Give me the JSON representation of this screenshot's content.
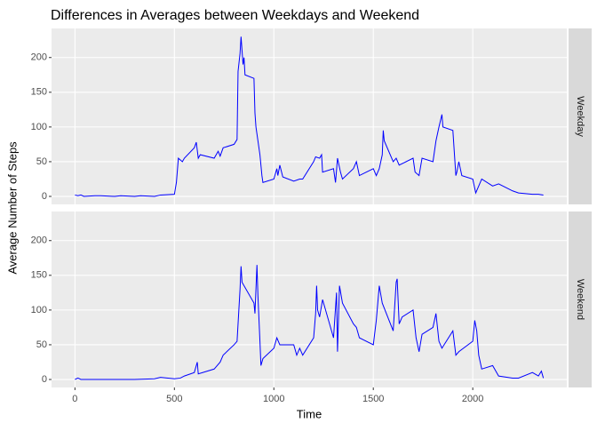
{
  "chart_data": {
    "type": "line",
    "title": "Differences in Averages between Weekdays and Weekend",
    "xlabel": "Time",
    "ylabel": "Average Number of Steps",
    "xlim": [
      -117.75,
      2472.75
    ],
    "xticks": [
      0,
      500,
      1000,
      1500,
      2000
    ],
    "ylim": [
      -11.5,
      241.9
    ],
    "yticks": [
      0,
      50,
      100,
      150,
      200
    ],
    "grid": true,
    "series": [
      {
        "name": "Weekday",
        "color": "#0000ff",
        "x": [
          0,
          15,
          30,
          45,
          100,
          130,
          200,
          230,
          300,
          330,
          400,
          430,
          500,
          510,
          520,
          540,
          550,
          600,
          610,
          620,
          630,
          700,
          720,
          730,
          745,
          800,
          815,
          820,
          830,
          835,
          840,
          845,
          850,
          855,
          900,
          905,
          910,
          915,
          930,
          940,
          945,
          1000,
          1015,
          1020,
          1030,
          1045,
          1100,
          1130,
          1145,
          1200,
          1210,
          1230,
          1240,
          1245,
          1300,
          1310,
          1320,
          1335,
          1345,
          1400,
          1415,
          1430,
          1500,
          1515,
          1530,
          1545,
          1550,
          1555,
          1600,
          1615,
          1630,
          1700,
          1710,
          1730,
          1745,
          1800,
          1815,
          1830,
          1845,
          1850,
          1900,
          1915,
          1920,
          1930,
          1945,
          2000,
          2015,
          2030,
          2045,
          2100,
          2130,
          2200,
          2230,
          2300,
          2330,
          2355
        ],
        "values": [
          2,
          1,
          2,
          0,
          1,
          1,
          0,
          1,
          0,
          1,
          0,
          2,
          3,
          20,
          55,
          50,
          55,
          70,
          78,
          55,
          60,
          55,
          65,
          58,
          70,
          75,
          82,
          180,
          206,
          230,
          210,
          190,
          200,
          175,
          170,
          120,
          100,
          90,
          60,
          30,
          20,
          25,
          40,
          30,
          45,
          28,
          22,
          25,
          25,
          50,
          57,
          55,
          60,
          35,
          40,
          20,
          55,
          35,
          25,
          40,
          50,
          30,
          40,
          30,
          40,
          60,
          95,
          80,
          50,
          55,
          45,
          55,
          35,
          30,
          55,
          50,
          80,
          100,
          118,
          100,
          95,
          30,
          35,
          50,
          30,
          25,
          5,
          15,
          25,
          15,
          18,
          8,
          5,
          3,
          3,
          2
        ]
      },
      {
        "name": "Weekend",
        "color": "#0000ff",
        "x": [
          0,
          15,
          30,
          100,
          200,
          300,
          400,
          430,
          500,
          530,
          550,
          600,
          615,
          620,
          700,
          730,
          745,
          800,
          815,
          830,
          835,
          840,
          900,
          905,
          915,
          920,
          930,
          935,
          945,
          1000,
          1015,
          1030,
          1100,
          1115,
          1130,
          1145,
          1200,
          1210,
          1215,
          1220,
          1230,
          1245,
          1300,
          1315,
          1320,
          1330,
          1345,
          1400,
          1415,
          1430,
          1500,
          1515,
          1530,
          1545,
          1600,
          1615,
          1620,
          1630,
          1645,
          1700,
          1715,
          1730,
          1745,
          1800,
          1815,
          1830,
          1845,
          1900,
          1915,
          1930,
          2000,
          2010,
          2020,
          2030,
          2045,
          2100,
          2130,
          2200,
          2230,
          2300,
          2330,
          2345,
          2355
        ],
        "values": [
          0,
          2,
          0,
          0,
          0,
          0,
          1,
          3,
          1,
          2,
          5,
          10,
          25,
          8,
          15,
          25,
          35,
          50,
          55,
          130,
          163,
          140,
          110,
          95,
          165,
          120,
          55,
          20,
          30,
          45,
          60,
          50,
          50,
          35,
          45,
          35,
          60,
          95,
          135,
          100,
          90,
          115,
          60,
          125,
          40,
          135,
          110,
          80,
          75,
          60,
          50,
          85,
          135,
          110,
          70,
          140,
          145,
          80,
          90,
          100,
          60,
          40,
          65,
          75,
          95,
          55,
          45,
          70,
          35,
          40,
          55,
          85,
          70,
          35,
          15,
          20,
          5,
          2,
          2,
          10,
          5,
          12,
          2
        ]
      }
    ]
  }
}
